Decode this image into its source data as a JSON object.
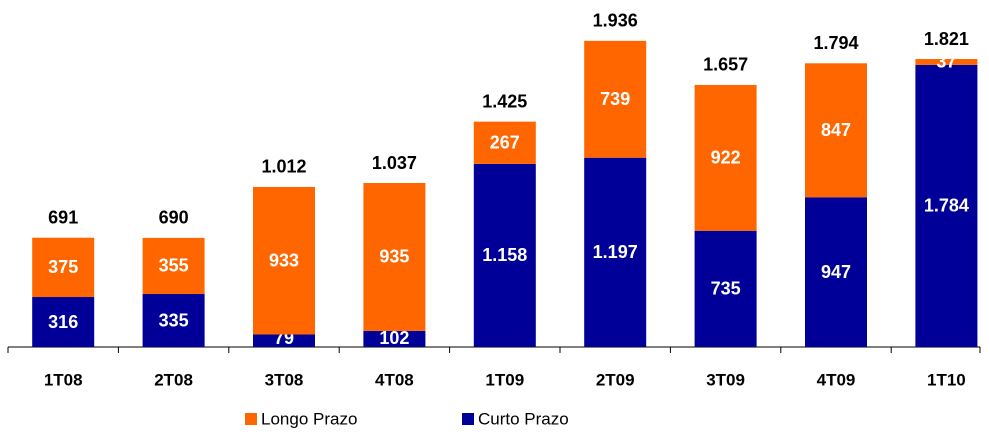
{
  "chart_data": {
    "type": "stacked_bar",
    "categories": [
      "1T08",
      "2T08",
      "3T08",
      "4T08",
      "1T09",
      "2T09",
      "3T09",
      "4T09",
      "1T10"
    ],
    "series": [
      {
        "name": "Curto Prazo",
        "color": "#000099",
        "values": [
          316,
          335,
          79,
          102,
          1158,
          1197,
          735,
          947,
          1784
        ],
        "value_labels": [
          "316",
          "335",
          "79",
          "102",
          "1.158",
          "1.197",
          "735",
          "947",
          "1.784"
        ]
      },
      {
        "name": "Longo Prazo",
        "color": "#ff6600",
        "values": [
          375,
          355,
          933,
          935,
          267,
          739,
          922,
          847,
          37
        ],
        "value_labels": [
          "375",
          "355",
          "933",
          "935",
          "267",
          "739",
          "922",
          "847",
          "37"
        ]
      }
    ],
    "totals": {
      "values": [
        691,
        690,
        1012,
        1037,
        1425,
        1936,
        1657,
        1794,
        1821
      ],
      "value_labels": [
        "691",
        "690",
        "1.012",
        "1.037",
        "1.425",
        "1.936",
        "1.657",
        "1.794",
        "1.821"
      ]
    },
    "ylim": [
      0,
      2150
    ],
    "legend": "bottom"
  }
}
